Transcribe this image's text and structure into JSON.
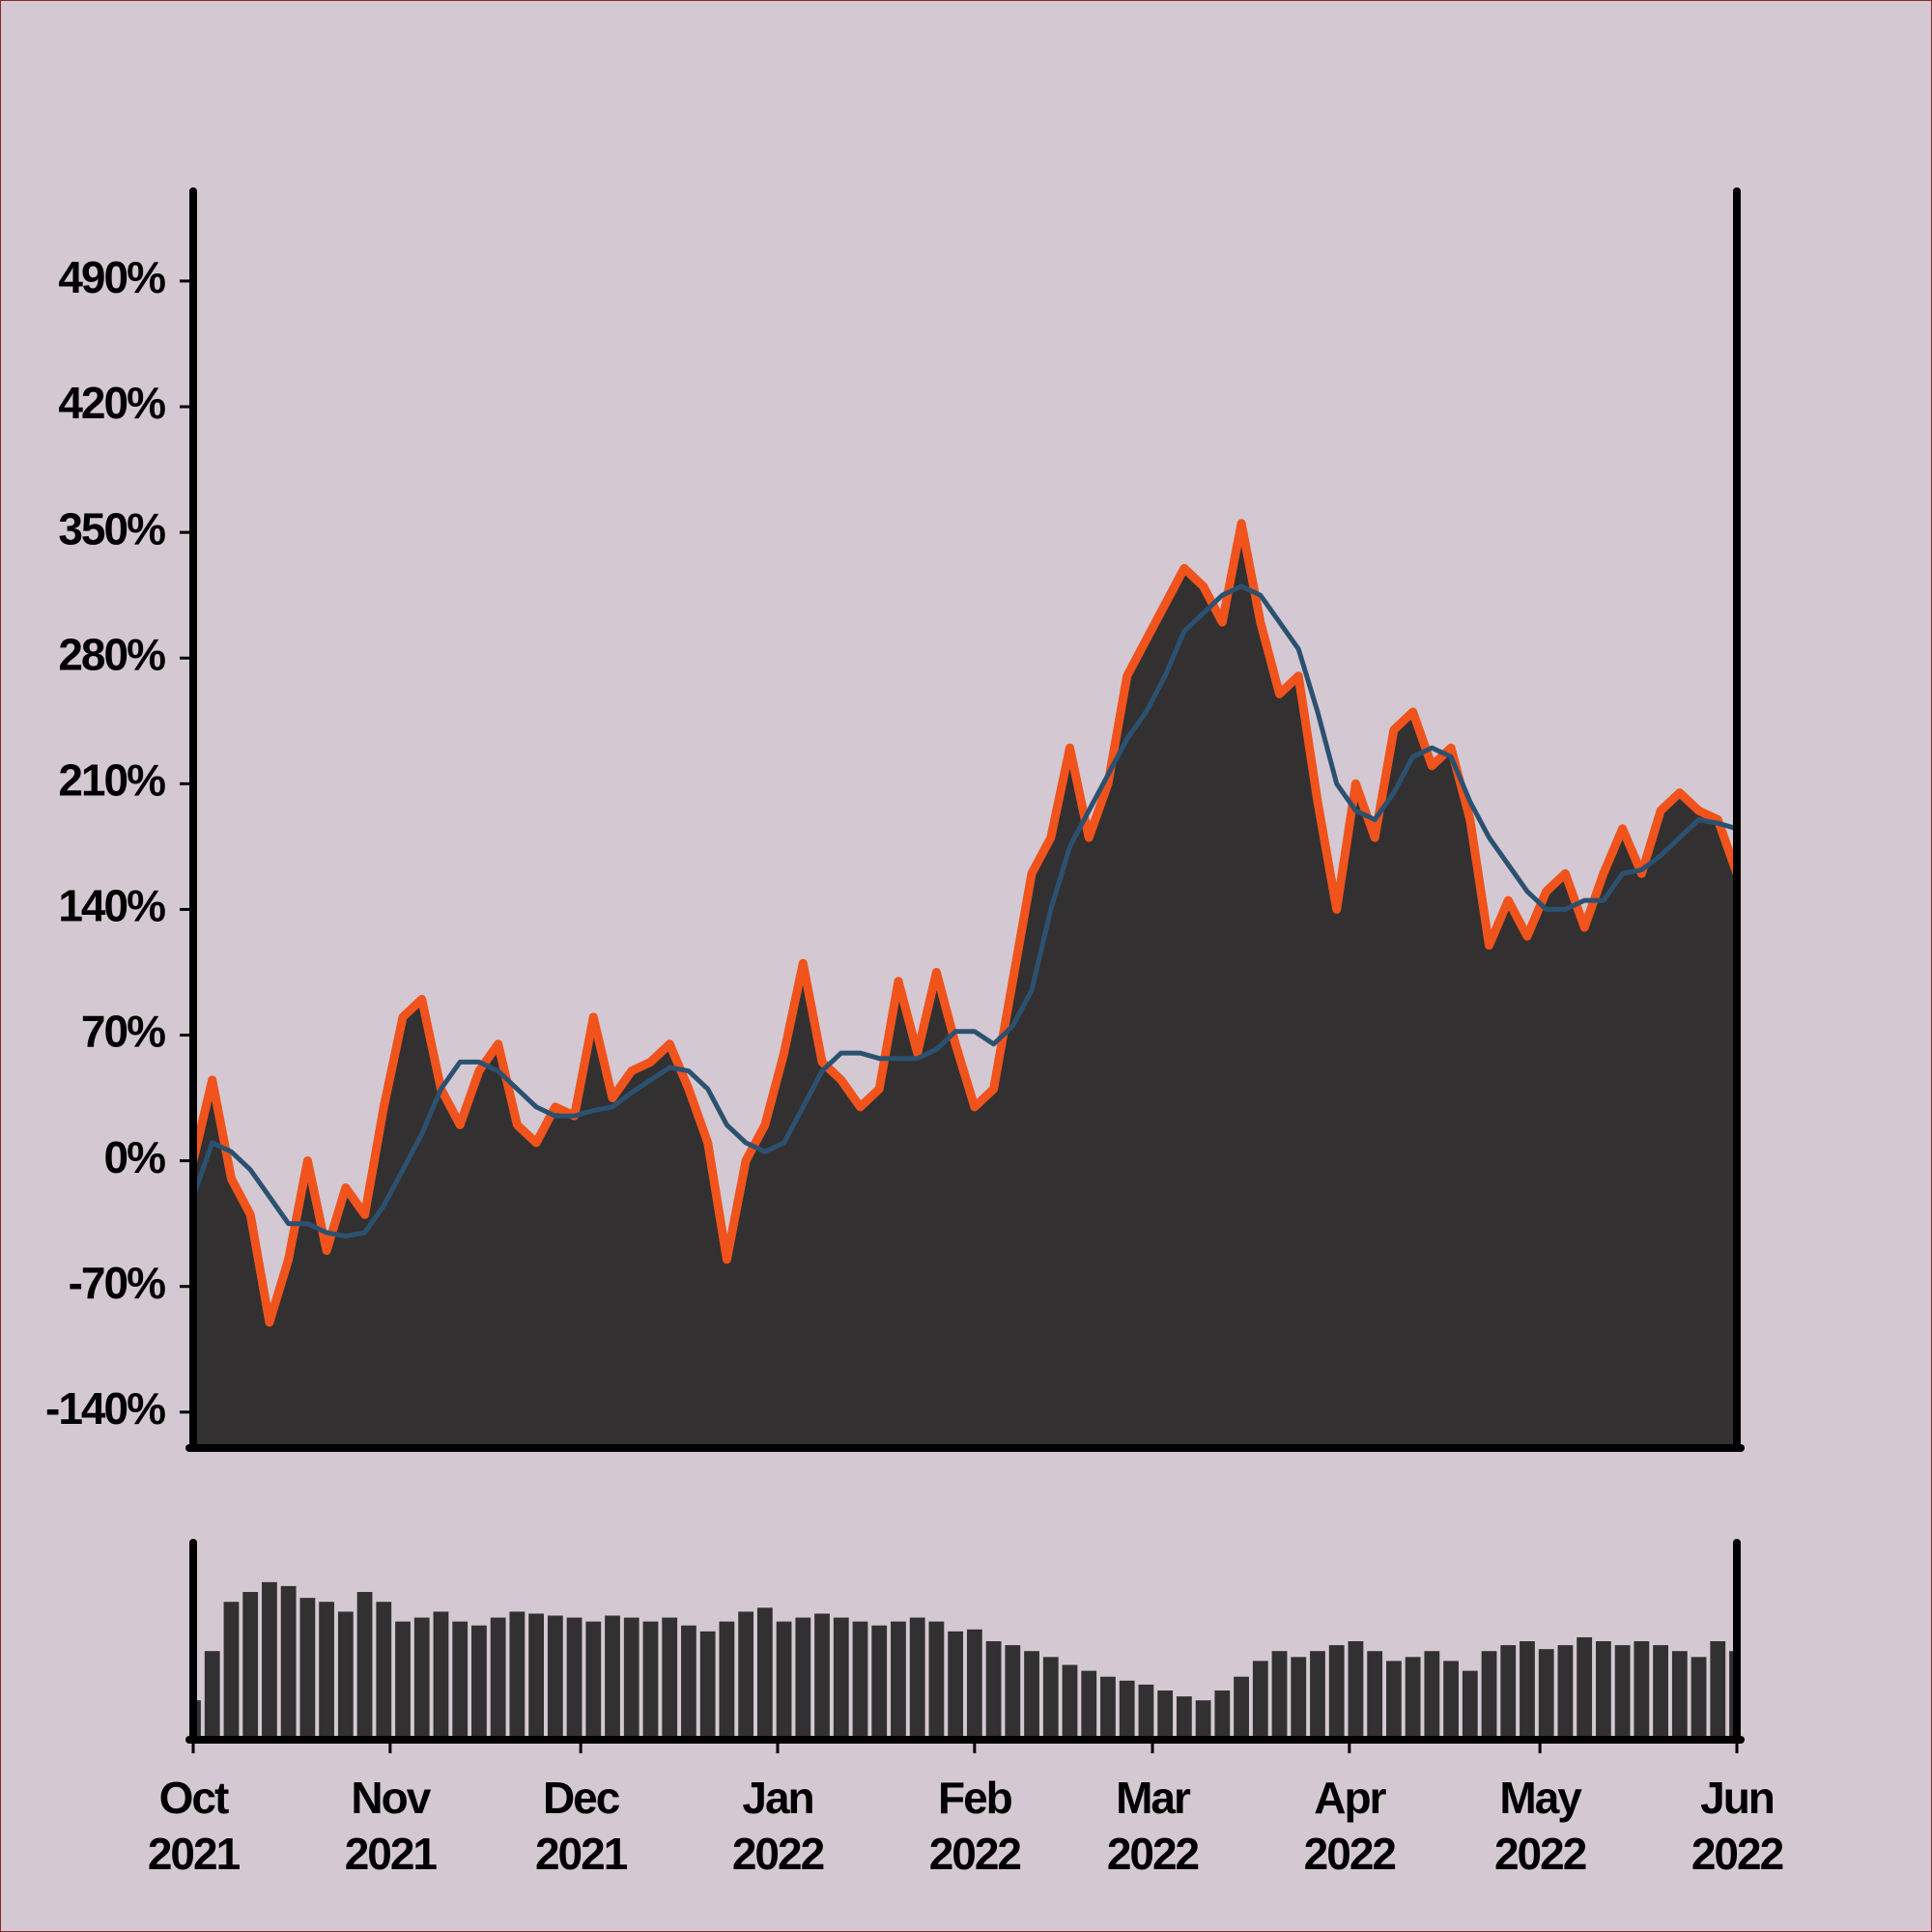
{
  "chart_data": [
    {
      "type": "area",
      "x": [
        0,
        3,
        6,
        9,
        12,
        15,
        18,
        21,
        24,
        27,
        30,
        33,
        36,
        39,
        42,
        45,
        48,
        51,
        54,
        57,
        60,
        63,
        66,
        69,
        72,
        75,
        78,
        81,
        84,
        87,
        90,
        93,
        96,
        99,
        102,
        105,
        108,
        111,
        114,
        117,
        120,
        123,
        126,
        129,
        132,
        135,
        138,
        141,
        144,
        147,
        150,
        153,
        156,
        159,
        162,
        165,
        168,
        171,
        174,
        177,
        180,
        183,
        186,
        189,
        192,
        195,
        198,
        201,
        204,
        207,
        210,
        213,
        216,
        219,
        222,
        225,
        228,
        231,
        234,
        237,
        240,
        243
      ],
      "series": [
        {
          "color": "#f0531c",
          "fill": "#323031",
          "values": [
            0,
            45,
            -10,
            -30,
            -90,
            -55,
            0,
            -50,
            -15,
            -30,
            30,
            80,
            90,
            40,
            20,
            50,
            65,
            20,
            10,
            30,
            25,
            80,
            35,
            50,
            55,
            65,
            40,
            10,
            -55,
            0,
            20,
            60,
            110,
            55,
            45,
            30,
            40,
            100,
            60,
            105,
            65,
            30,
            40,
            100,
            160,
            180,
            230,
            180,
            210,
            270,
            290,
            310,
            330,
            320,
            300,
            355,
            300,
            260,
            270,
            200,
            140,
            210,
            180,
            240,
            250,
            220,
            230,
            190,
            120,
            145,
            125,
            150,
            160,
            130,
            160,
            185,
            160,
            195,
            205,
            195,
            190,
            160
          ]
        },
        {
          "color": "#2c5170",
          "values": [
            -20,
            10,
            5,
            -5,
            -20,
            -35,
            -35,
            -40,
            -42,
            -40,
            -25,
            -5,
            15,
            40,
            55,
            55,
            50,
            40,
            30,
            25,
            25,
            28,
            30,
            38,
            45,
            52,
            50,
            40,
            20,
            10,
            5,
            10,
            30,
            50,
            60,
            60,
            57,
            57,
            57,
            62,
            72,
            72,
            65,
            75,
            95,
            140,
            175,
            195,
            215,
            235,
            250,
            270,
            295,
            305,
            315,
            320,
            315,
            300,
            285,
            250,
            210,
            195,
            190,
            205,
            225,
            230,
            225,
            200,
            180,
            165,
            150,
            140,
            140,
            145,
            145,
            160,
            162,
            170,
            180,
            190,
            188,
            185
          ]
        }
      ],
      "xlim": [
        0,
        243
      ],
      "ylim": [
        -160,
        540
      ],
      "yticks": [
        {
          "value": -140,
          "label": "-140%"
        },
        {
          "value": -70,
          "label": "-70%"
        },
        {
          "value": 0,
          "label": "0%"
        },
        {
          "value": 70,
          "label": "70%"
        },
        {
          "value": 140,
          "label": "140%"
        },
        {
          "value": 210,
          "label": "210%"
        },
        {
          "value": 280,
          "label": "280%"
        },
        {
          "value": 350,
          "label": "350%"
        },
        {
          "value": 420,
          "label": "420%"
        },
        {
          "value": 490,
          "label": "490%"
        }
      ]
    },
    {
      "type": "bar",
      "color": "#323031",
      "x": [
        0,
        3,
        6,
        9,
        12,
        15,
        18,
        21,
        24,
        27,
        30,
        33,
        36,
        39,
        42,
        45,
        48,
        51,
        54,
        57,
        60,
        63,
        66,
        69,
        72,
        75,
        78,
        81,
        84,
        87,
        90,
        93,
        96,
        99,
        102,
        105,
        108,
        111,
        114,
        117,
        120,
        123,
        126,
        129,
        132,
        135,
        138,
        141,
        144,
        147,
        150,
        153,
        156,
        159,
        162,
        165,
        168,
        171,
        174,
        177,
        180,
        183,
        186,
        189,
        192,
        195,
        198,
        201,
        204,
        207,
        210,
        213,
        216,
        219,
        222,
        225,
        228,
        231,
        234,
        237,
        240,
        243
      ],
      "values": [
        20,
        45,
        70,
        75,
        80,
        78,
        72,
        70,
        65,
        75,
        70,
        60,
        62,
        65,
        60,
        58,
        62,
        65,
        64,
        63,
        62,
        60,
        63,
        62,
        60,
        62,
        58,
        55,
        60,
        65,
        67,
        60,
        62,
        64,
        62,
        60,
        58,
        60,
        62,
        60,
        55,
        56,
        50,
        48,
        45,
        42,
        38,
        35,
        32,
        30,
        28,
        25,
        22,
        20,
        25,
        32,
        40,
        45,
        42,
        45,
        48,
        50,
        45,
        40,
        42,
        45,
        40,
        35,
        45,
        48,
        50,
        46,
        48,
        52,
        50,
        48,
        50,
        48,
        45,
        42,
        50,
        45
      ],
      "xlim": [
        0,
        243
      ],
      "ylim": [
        0,
        100
      ],
      "xticks": [
        {
          "value": 0,
          "label": "Oct 2021"
        },
        {
          "value": 31,
          "label": "Nov 2021"
        },
        {
          "value": 61,
          "label": "Dec 2021"
        },
        {
          "value": 92,
          "label": "Jan 2022"
        },
        {
          "value": 123,
          "label": "Feb 2022"
        },
        {
          "value": 151,
          "label": "Mar 2022"
        },
        {
          "value": 182,
          "label": "Apr 2022"
        },
        {
          "value": 212,
          "label": "May 2022"
        },
        {
          "value": 243,
          "label": "Jun 2022"
        }
      ]
    }
  ]
}
